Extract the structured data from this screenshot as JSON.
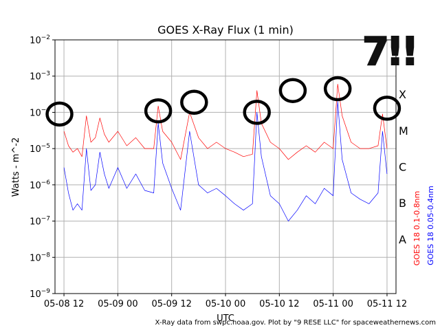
{
  "chart_data": {
    "type": "line",
    "title": "GOES X-Ray Flux (1 min)",
    "xlabel": "UTC",
    "ylabel": "Watts - m^-2",
    "y_scale": "log",
    "ylim": [
      1e-09,
      0.01
    ],
    "y_ticks": [
      {
        "mant": "10",
        "exp": "−9"
      },
      {
        "mant": "10",
        "exp": "−8"
      },
      {
        "mant": "10",
        "exp": "−7"
      },
      {
        "mant": "10",
        "exp": "−6"
      },
      {
        "mant": "10",
        "exp": "−5"
      },
      {
        "mant": "10",
        "exp": "−4"
      },
      {
        "mant": "10",
        "exp": "−3"
      },
      {
        "mant": "10",
        "exp": "−2"
      }
    ],
    "xlim": [
      "2024-05-08 10:00",
      "2024-05-11 14:00"
    ],
    "x_ticks": [
      "05-08 12",
      "05-09 00",
      "05-09 12",
      "05-10 00",
      "05-10 12",
      "05-11 00",
      "05-11 12"
    ],
    "grid": true,
    "flare_classes": [
      "A",
      "B",
      "C",
      "M",
      "X"
    ],
    "series": [
      {
        "name": "GOES 18 0.1-0.8nm",
        "color": "#ff0000",
        "x": [
          "05-08 12:00",
          "05-08 13:00",
          "05-08 14:00",
          "05-08 15:00",
          "05-08 16:00",
          "05-08 17:00",
          "05-08 18:00",
          "05-08 19:00",
          "05-08 20:00",
          "05-08 21:00",
          "05-08 22:00",
          "05-09 00:00",
          "05-09 02:00",
          "05-09 04:00",
          "05-09 06:00",
          "05-09 08:00",
          "05-09 09:00",
          "05-09 10:00",
          "05-09 12:00",
          "05-09 14:00",
          "05-09 16:00",
          "05-09 18:00",
          "05-09 20:00",
          "05-09 22:00",
          "05-10 00:00",
          "05-10 02:00",
          "05-10 04:00",
          "05-10 06:00",
          "05-10 07:00",
          "05-10 08:00",
          "05-10 10:00",
          "05-10 12:00",
          "05-10 14:00",
          "05-10 16:00",
          "05-10 18:00",
          "05-10 20:00",
          "05-10 22:00",
          "05-11 00:00",
          "05-11 01:00",
          "05-11 02:00",
          "05-11 04:00",
          "05-11 06:00",
          "05-11 08:00",
          "05-11 10:00",
          "05-11 11:00",
          "05-11 12:00"
        ],
        "y": [
          3e-05,
          1.2e-05,
          8e-06,
          1e-05,
          6e-06,
          8e-05,
          1.5e-05,
          2e-05,
          7e-05,
          2.5e-05,
          1.5e-05,
          3e-05,
          1.2e-05,
          2e-05,
          1e-05,
          1e-05,
          0.00015,
          3e-05,
          1.5e-05,
          5e-06,
          0.0001,
          2e-05,
          1e-05,
          1.5e-05,
          1e-05,
          8e-06,
          6e-06,
          7e-06,
          0.0004,
          5e-05,
          1.5e-05,
          1e-05,
          5e-06,
          8e-06,
          1.2e-05,
          8e-06,
          1.5e-05,
          1e-05,
          0.0006,
          8e-05,
          1.5e-05,
          1e-05,
          1e-05,
          1.2e-05,
          9e-05,
          1e-05
        ]
      },
      {
        "name": "GOES 18 0.05-0.4nm",
        "color": "#0000ff",
        "x": [
          "05-08 12:00",
          "05-08 13:00",
          "05-08 14:00",
          "05-08 15:00",
          "05-08 16:00",
          "05-08 17:00",
          "05-08 18:00",
          "05-08 19:00",
          "05-08 20:00",
          "05-08 21:00",
          "05-08 22:00",
          "05-09 00:00",
          "05-09 02:00",
          "05-09 04:00",
          "05-09 06:00",
          "05-09 08:00",
          "05-09 09:00",
          "05-09 10:00",
          "05-09 12:00",
          "05-09 14:00",
          "05-09 16:00",
          "05-09 18:00",
          "05-09 20:00",
          "05-09 22:00",
          "05-10 00:00",
          "05-10 02:00",
          "05-10 04:00",
          "05-10 06:00",
          "05-10 07:00",
          "05-10 08:00",
          "05-10 10:00",
          "05-10 12:00",
          "05-10 14:00",
          "05-10 16:00",
          "05-10 18:00",
          "05-10 20:00",
          "05-10 22:00",
          "05-11 00:00",
          "05-11 01:00",
          "05-11 02:00",
          "05-11 04:00",
          "05-11 06:00",
          "05-11 08:00",
          "05-11 10:00",
          "05-11 11:00",
          "05-11 12:00"
        ],
        "y": [
          3e-06,
          6e-07,
          2e-07,
          3e-07,
          2e-07,
          1e-05,
          7e-07,
          1e-06,
          8e-06,
          2e-06,
          8e-07,
          3e-06,
          8e-07,
          2e-06,
          7e-07,
          6e-07,
          5e-05,
          4e-06,
          8e-07,
          2e-07,
          3e-05,
          1e-06,
          6e-07,
          8e-07,
          5e-07,
          3e-07,
          2e-07,
          3e-07,
          0.0001,
          6e-06,
          5e-07,
          3e-07,
          1e-07,
          2e-07,
          5e-07,
          3e-07,
          8e-07,
          5e-07,
          0.0002,
          5e-06,
          6e-07,
          4e-07,
          3e-07,
          6e-07,
          3e-05,
          2e-06
        ]
      }
    ]
  },
  "annotation": {
    "text": "7!!"
  },
  "circled_peaks": [
    {
      "time": "05-08 11:00",
      "flux": 9e-05
    },
    {
      "time": "05-09 09:00",
      "flux": 0.00011
    },
    {
      "time": "05-09 17:00",
      "flux": 0.00019
    },
    {
      "time": "05-10 07:00",
      "flux": 0.0001
    },
    {
      "time": "05-10 15:00",
      "flux": 0.0004
    },
    {
      "time": "05-11 01:00",
      "flux": 0.00045
    },
    {
      "time": "05-11 12:00",
      "flux": 0.00013
    }
  ],
  "credit": "X-Ray data from swpc.noaa.gov. Plot by \"9 RESE LLC\" for spaceweathernews.com"
}
